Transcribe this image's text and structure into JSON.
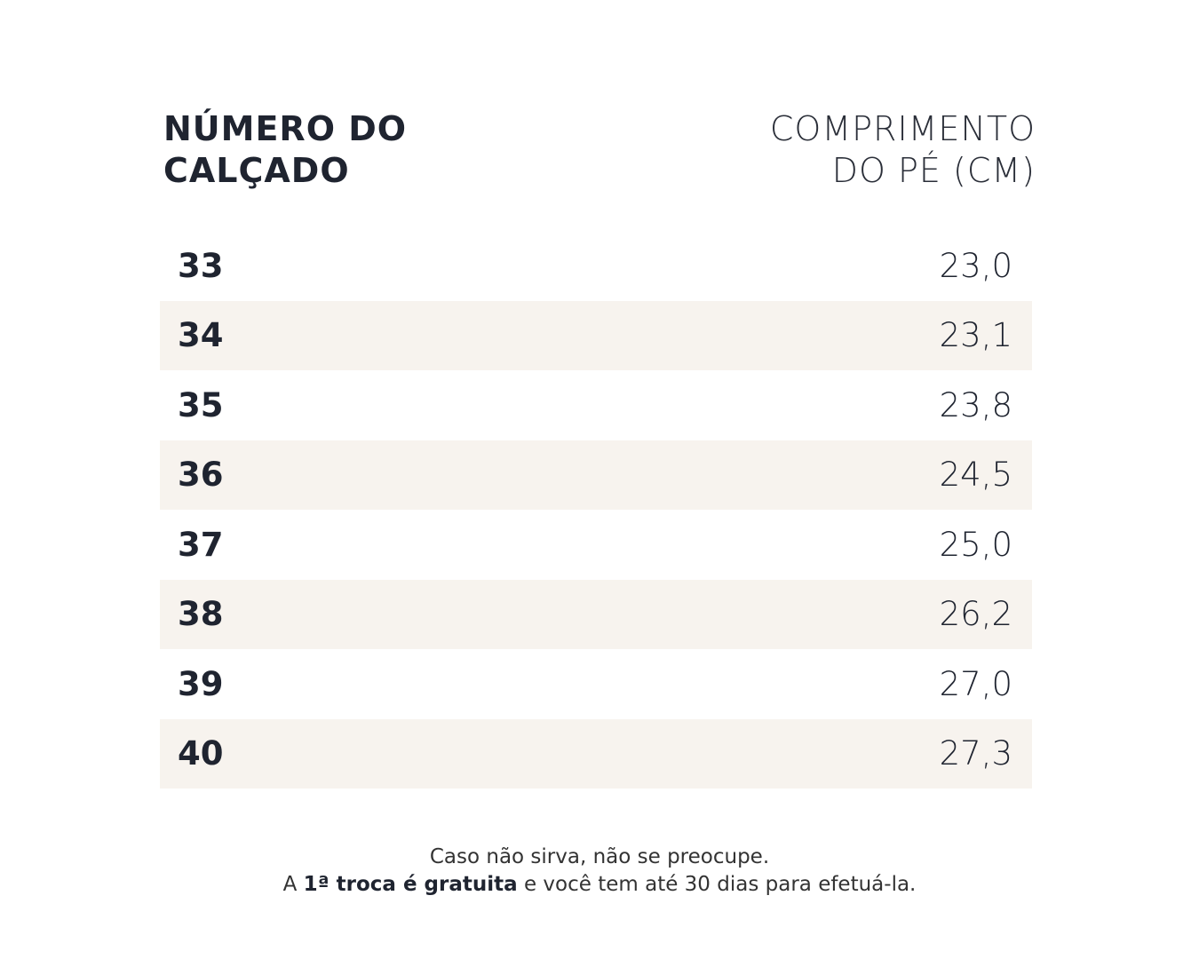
{
  "table": {
    "headers": [
      [
        "NÚMERO DO",
        "CALÇADO"
      ],
      [
        "COMPRIMENTO",
        "DO PÉ (CM)"
      ]
    ],
    "rows": [
      [
        "33",
        "23,0"
      ],
      [
        "34",
        "23,1"
      ],
      [
        "35",
        "23,8"
      ],
      [
        "36",
        "24,5"
      ],
      [
        "37",
        "25,0"
      ],
      [
        "38",
        "26,2"
      ],
      [
        "39",
        "27,0"
      ],
      [
        "40",
        "27,3"
      ]
    ]
  },
  "footer": {
    "line1": "Caso não sirva, não se preocupe.",
    "line2": {
      "before": "A",
      "bold": "1ª troca é gratuita",
      "after": "e você tem até 30 dias para efetuá-la."
    }
  }
}
